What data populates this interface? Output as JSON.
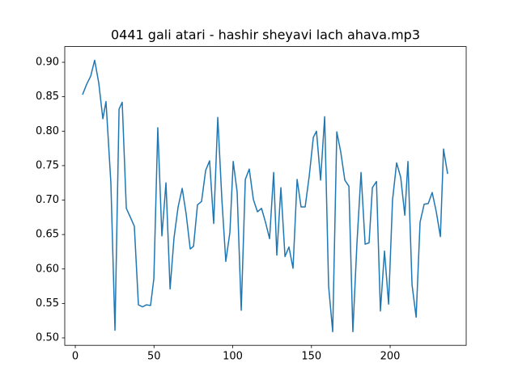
{
  "chart_data": {
    "type": "line",
    "title": "0441 gali atari - hashir sheyavi lach ahava.mp3",
    "x": [
      4.6,
      7.2,
      9.8,
      12.3,
      14.9,
      17.5,
      19.5,
      22.6,
      25.2,
      27.8,
      29.8,
      32.4,
      35.0,
      37.5,
      40.1,
      42.7,
      45.2,
      47.8,
      49.9,
      52.4,
      55.0,
      57.6,
      60.2,
      62.7,
      65.3,
      67.9,
      70.4,
      73.0,
      75.1,
      77.6,
      80.2,
      82.8,
      85.3,
      87.9,
      90.5,
      93.1,
      95.6,
      98.2,
      100.3,
      102.8,
      105.4,
      108.0,
      110.5,
      113.1,
      115.7,
      118.3,
      120.8,
      123.4,
      126.0,
      128.0,
      130.6,
      133.2,
      135.7,
      138.3,
      140.9,
      143.4,
      146.0,
      148.6,
      151.2,
      153.2,
      155.8,
      158.4,
      160.9,
      163.5,
      166.1,
      168.6,
      171.2,
      173.8,
      176.3,
      178.9,
      181.5,
      184.1,
      186.6,
      188.7,
      191.3,
      193.8,
      196.4,
      199.0,
      201.5,
      204.1,
      206.7,
      209.3,
      211.3,
      213.9,
      216.5,
      219.0,
      221.6,
      224.2,
      226.7,
      229.3,
      231.9,
      233.9,
      236.5
    ],
    "series": [
      {
        "color": "#1f77b4",
        "values": [
          0.853,
          0.868,
          0.88,
          0.903,
          0.87,
          0.818,
          0.843,
          0.725,
          0.511,
          0.832,
          0.842,
          0.688,
          0.675,
          0.662,
          0.548,
          0.545,
          0.548,
          0.547,
          0.586,
          0.805,
          0.648,
          0.725,
          0.571,
          0.645,
          0.69,
          0.717,
          0.68,
          0.629,
          0.633,
          0.693,
          0.698,
          0.743,
          0.757,
          0.666,
          0.82,
          0.701,
          0.611,
          0.653,
          0.756,
          0.712,
          0.54,
          0.73,
          0.745,
          0.701,
          0.683,
          0.688,
          0.668,
          0.644,
          0.74,
          0.62,
          0.718,
          0.618,
          0.632,
          0.601,
          0.73,
          0.69,
          0.69,
          0.735,
          0.791,
          0.8,
          0.729,
          0.821,
          0.575,
          0.509,
          0.799,
          0.77,
          0.729,
          0.72,
          0.509,
          0.637,
          0.74,
          0.636,
          0.638,
          0.718,
          0.727,
          0.539,
          0.626,
          0.549,
          0.7,
          0.754,
          0.733,
          0.678,
          0.756,
          0.577,
          0.53,
          0.668,
          0.694,
          0.695,
          0.711,
          0.683,
          0.647,
          0.774,
          0.738
        ]
      }
    ],
    "xlim": [
      -6.7,
      248.3
    ],
    "xticks": [
      0,
      50,
      100,
      150,
      200
    ],
    "ylim": [
      0.4892,
      0.9228
    ],
    "yticks": [
      {
        "value": 0.5,
        "label": "0.50"
      },
      {
        "value": 0.55,
        "label": "0.55"
      },
      {
        "value": 0.6,
        "label": "0.60"
      },
      {
        "value": 0.65,
        "label": "0.65"
      },
      {
        "value": 0.7,
        "label": "0.70"
      },
      {
        "value": 0.75,
        "label": "0.75"
      },
      {
        "value": 0.8,
        "label": "0.80"
      },
      {
        "value": 0.85,
        "label": "0.85"
      },
      {
        "value": 0.9,
        "label": "0.90"
      }
    ],
    "grid": false
  }
}
